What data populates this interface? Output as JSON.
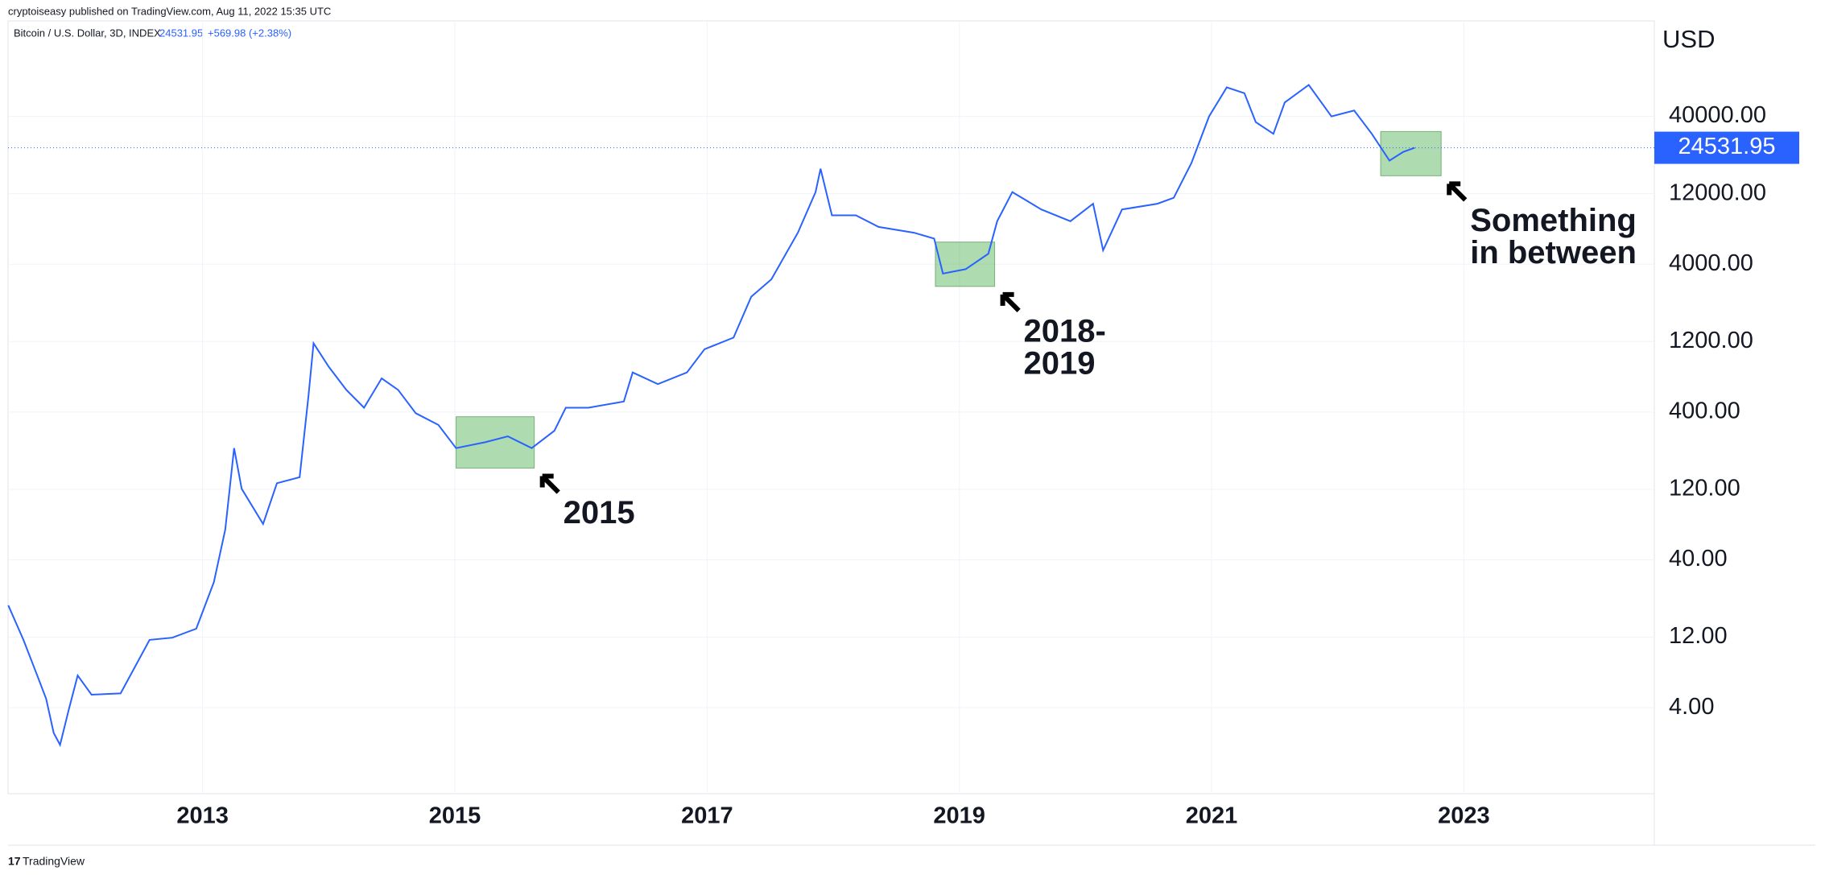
{
  "header": {
    "publisher": "cryptoiseasy published on TradingView.com, Aug 11, 2022 15:35 UTC",
    "symbol": "Bitcoin / U.S. Dollar, 3D, INDEX",
    "change": "+569.98 (+2.38%)",
    "footer": "TradingView"
  },
  "chart_data": {
    "type": "line",
    "currency": "USD",
    "log_scale": true,
    "grid": true,
    "xlim": [
      2011.458,
      2024.51
    ],
    "xticks": [
      2013,
      2015,
      2017,
      2019,
      2021,
      2023
    ],
    "ylim": [
      1.048,
      176900
    ],
    "yticks": [
      {
        "value": 4,
        "label": "4.00"
      },
      {
        "value": 12,
        "label": "12.00"
      },
      {
        "value": 40,
        "label": "40.00"
      },
      {
        "value": 120,
        "label": "120.00"
      },
      {
        "value": 400,
        "label": "400.00"
      },
      {
        "value": 1200,
        "label": "1200.00"
      },
      {
        "value": 4000,
        "label": "4000.00"
      },
      {
        "value": 12000,
        "label": "12000.00"
      },
      {
        "value": 40000,
        "label": "40000.00"
      }
    ],
    "last_price": 24531.95,
    "series": [
      {
        "name": "Bitcoin / U.S. Dollar",
        "color": "#2962ff",
        "x": [
          2011.46,
          2011.58,
          2011.67,
          2011.76,
          2011.82,
          2011.87,
          2011.94,
          2012.01,
          2012.12,
          2012.35,
          2012.58,
          2012.76,
          2012.95,
          2013.09,
          2013.18,
          2013.25,
          2013.31,
          2013.48,
          2013.59,
          2013.77,
          2013.84,
          2013.88,
          2014.0,
          2014.14,
          2014.28,
          2014.42,
          2014.55,
          2014.69,
          2014.87,
          2015.01,
          2015.24,
          2015.42,
          2015.61,
          2015.79,
          2015.88,
          2016.06,
          2016.34,
          2016.41,
          2016.61,
          2016.84,
          2016.98,
          2017.21,
          2017.35,
          2017.51,
          2017.72,
          2017.86,
          2017.9,
          2017.99,
          2018.18,
          2018.36,
          2018.64,
          2018.8,
          2018.87,
          2019.05,
          2019.23,
          2019.3,
          2019.42,
          2019.65,
          2019.88,
          2020.06,
          2020.14,
          2020.29,
          2020.57,
          2020.7,
          2020.84,
          2020.98,
          2021.12,
          2021.26,
          2021.35,
          2021.49,
          2021.58,
          2021.77,
          2021.95,
          2022.13,
          2022.27,
          2022.41,
          2022.52,
          2022.61
        ],
        "values": [
          19.7,
          11.5,
          7.3,
          4.6,
          2.7,
          2.24,
          3.9,
          6.6,
          4.9,
          5.0,
          11.5,
          11.9,
          13.7,
          28.3,
          64,
          228,
          121,
          70,
          132,
          145,
          515,
          1167,
          811,
          565,
          428,
          676,
          565,
          393,
          327,
          228,
          250,
          274,
          228,
          299,
          428,
          428,
          471,
          741,
          618,
          741,
          1065,
          1276,
          2410,
          3160,
          6530,
          12310,
          17700,
          8570,
          8570,
          7150,
          6530,
          5960,
          3460,
          3700,
          4710,
          7820,
          12310,
          9380,
          7820,
          10260,
          4970,
          9380,
          10260,
          11250,
          19360,
          40000,
          62900,
          57400,
          36600,
          30500,
          49700,
          65300,
          40000,
          43800,
          30500,
          20100,
          23000,
          24531.95
        ]
      }
    ],
    "boxes": [
      {
        "x": [
          2015.01,
          2015.63
        ],
        "y": [
          167,
          372
        ],
        "lines": [
          "2015"
        ]
      },
      {
        "x": [
          2018.81,
          2019.28
        ],
        "y": [
          2830,
          5650
        ],
        "lines": [
          "2018-",
          "2019"
        ]
      },
      {
        "x": [
          2022.34,
          2022.82
        ],
        "y": [
          15860,
          31600
        ],
        "lines": [
          "Something",
          "in between"
        ]
      }
    ]
  }
}
